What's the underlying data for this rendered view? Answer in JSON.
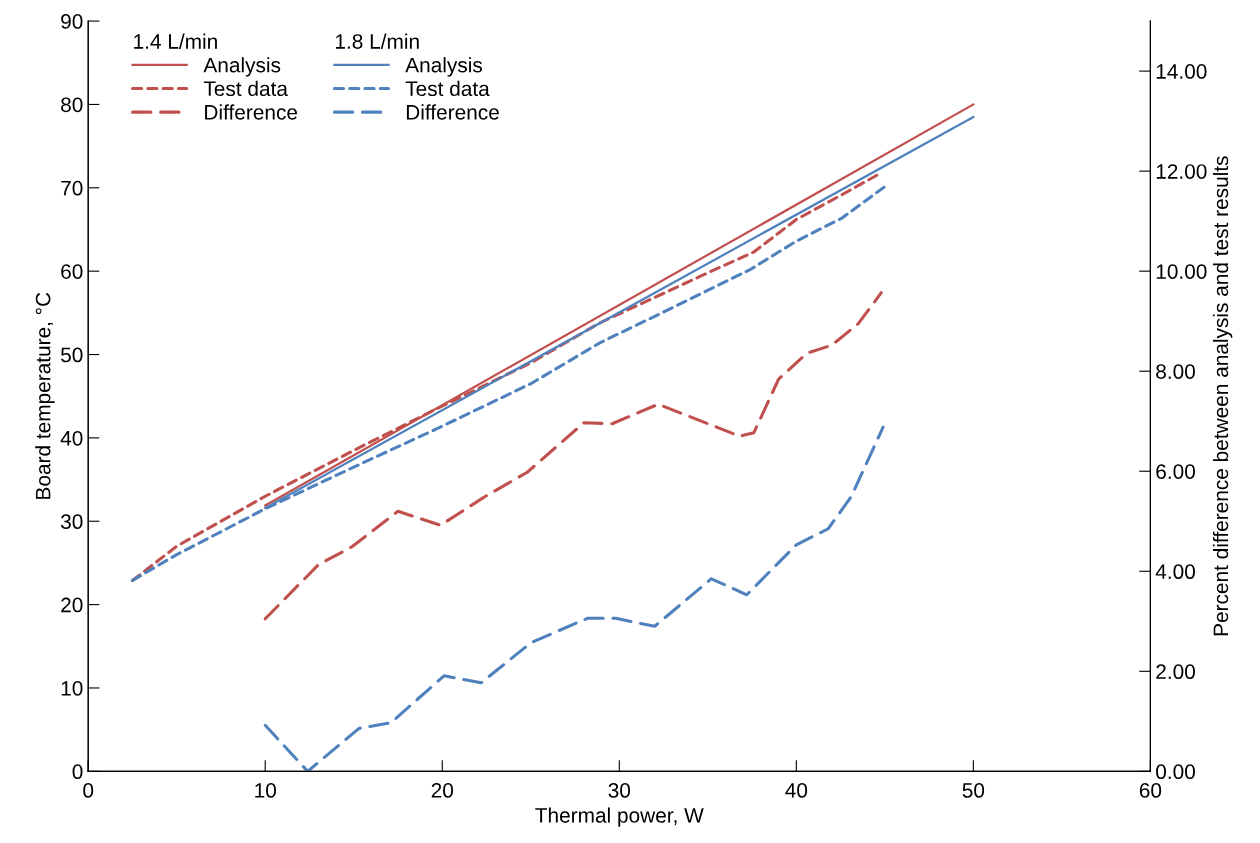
{
  "chart_data": {
    "type": "line",
    "xlabel": "Thermal power, W",
    "ylabel": "Board temperature, °C",
    "y2label": "Percent difference between analysis and test results",
    "annotations": [
      "1.4 L/min",
      "1.8 L/min"
    ],
    "legend": "top left",
    "grid": false,
    "marker": "none",
    "xlim": [
      0,
      60
    ],
    "xticks": [
      0,
      10,
      20,
      30,
      40,
      50,
      60
    ],
    "ylim": [
      0,
      90
    ],
    "yticks": [
      0,
      10,
      20,
      30,
      40,
      50,
      60,
      70,
      80,
      90
    ],
    "y2lim": [
      0,
      15
    ],
    "y2ticks": [
      {
        "value": 0,
        "label": "0.00"
      },
      {
        "value": 2,
        "label": "2.00"
      },
      {
        "value": 4,
        "label": "4.00"
      },
      {
        "value": 6,
        "label": "6.00"
      },
      {
        "value": 8,
        "label": "8.00"
      },
      {
        "value": 10,
        "label": "10.00"
      },
      {
        "value": 12,
        "label": "12.00"
      },
      {
        "value": 14,
        "label": "14.00"
      }
    ],
    "series": [
      {
        "name": "Analysis",
        "color": "#c0504d",
        "line_style": "solid",
        "x": [
          10,
          50
        ],
        "values": [
          31.9,
          80
        ]
      },
      {
        "name": "Test data",
        "color": "#c0504d",
        "line_style": "dotted",
        "x": [
          2.5,
          5,
          10,
          15,
          19.7,
          25,
          28.9,
          35,
          37.6,
          40,
          42.6,
          44.8
        ],
        "values": [
          22.9,
          27.0,
          33.0,
          38.5,
          43.5,
          49.0,
          53.8,
          59.8,
          62.3,
          66.2,
          69.2,
          71.8
        ]
      },
      {
        "name": "Difference",
        "color": "#c0504d",
        "line_style": "dashed",
        "axis": "y2",
        "x": [
          10,
          13,
          14.9,
          17.5,
          19.9,
          22.4,
          24.8,
          28,
          29.6,
          32.2,
          36.8,
          37.6,
          39,
          40.6,
          42,
          43.5,
          44.8
        ],
        "values": [
          3.05,
          4.13,
          4.49,
          5.2,
          4.92,
          5.49,
          5.98,
          6.97,
          6.95,
          7.34,
          6.7,
          6.77,
          7.84,
          8.36,
          8.52,
          8.95,
          9.57
        ]
      },
      {
        "name": "Analysis",
        "color": "#4f81bd",
        "line_style": "solid",
        "x": [
          10,
          50
        ],
        "values": [
          31.6,
          78.5
        ]
      },
      {
        "name": "Test data",
        "color": "#4f81bd",
        "line_style": "dotted",
        "x": [
          2.5,
          5,
          10,
          15,
          19.7,
          25,
          28.9,
          32.5,
          37.4,
          40,
          42.6,
          45.1
        ],
        "values": [
          22.9,
          26.0,
          31.5,
          36.5,
          41.1,
          46.5,
          51.4,
          55.1,
          60.2,
          63.6,
          66.4,
          70.3
        ]
      },
      {
        "name": "Difference",
        "color": "#4f81bd",
        "line_style": "dashed",
        "axis": "y2",
        "x": [
          10,
          12.4,
          15.3,
          17.1,
          20.1,
          22.2,
          25,
          28.2,
          29.8,
          32,
          35.2,
          37.2,
          40,
          41.8,
          43.1,
          44.9
        ],
        "values": [
          0.92,
          0.0,
          0.86,
          0.97,
          1.91,
          1.77,
          2.57,
          3.06,
          3.06,
          2.9,
          3.85,
          3.53,
          4.53,
          4.85,
          5.49,
          6.88
        ]
      }
    ]
  }
}
